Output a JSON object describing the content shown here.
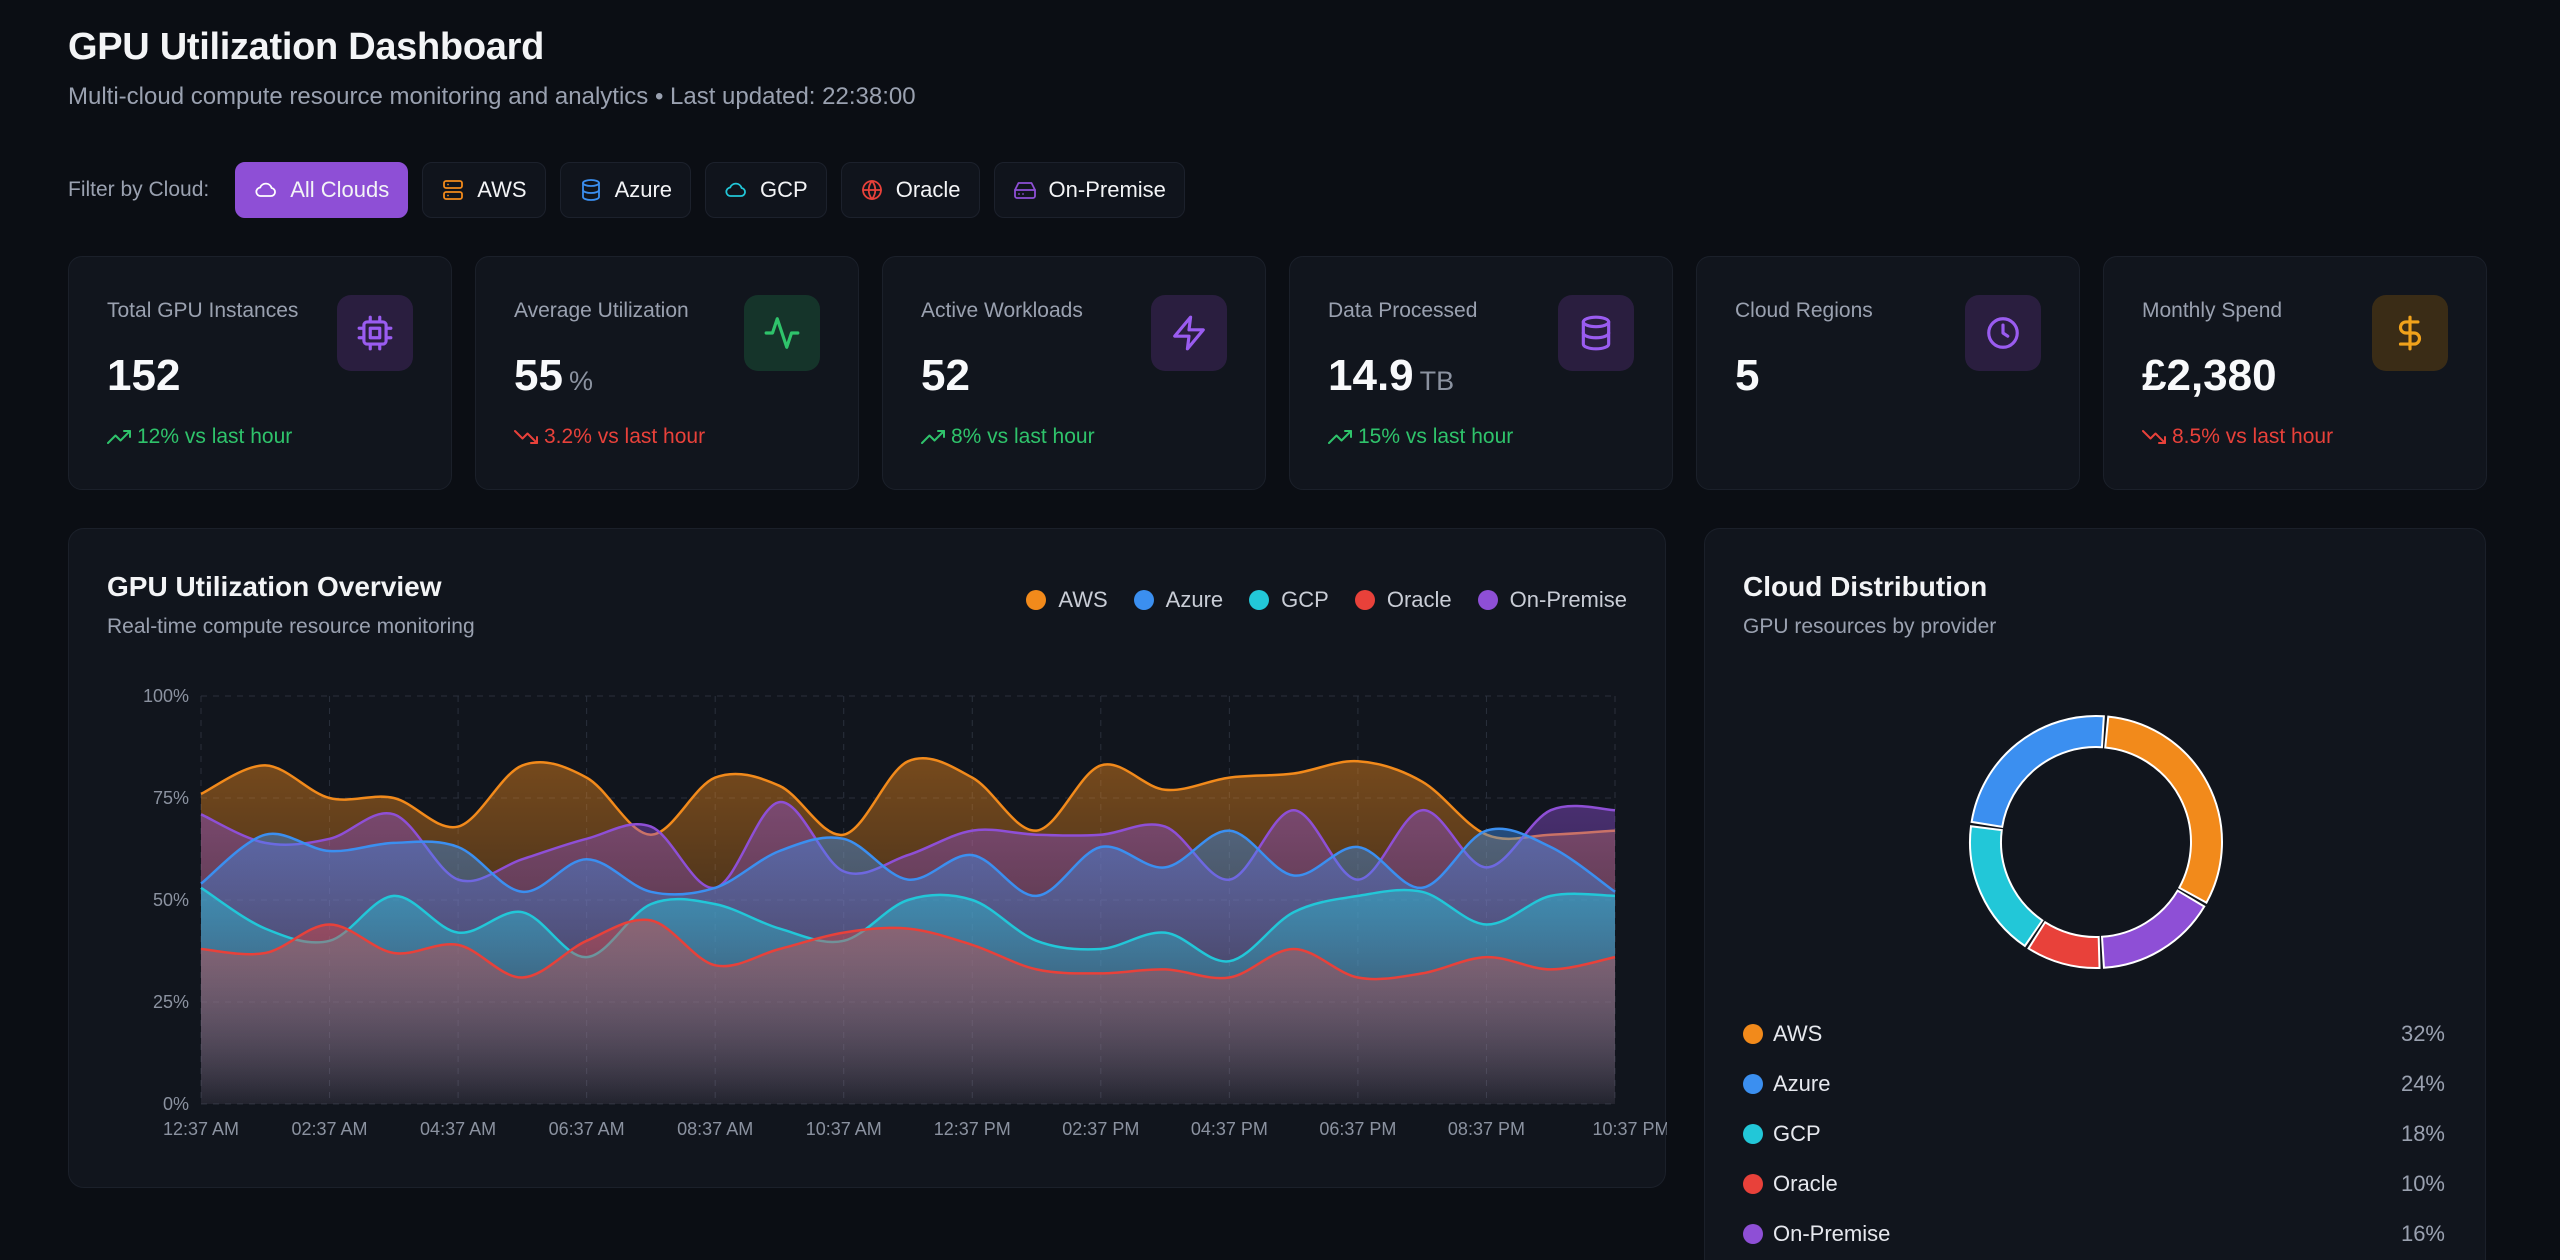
{
  "header": {
    "title": "GPU Utilization Dashboard",
    "subtitle": "Multi-cloud compute resource monitoring and analytics • Last updated: 22:38:00"
  },
  "filters": {
    "label": "Filter by Cloud:",
    "options": [
      {
        "label": "All Clouds",
        "icon": "cloud-icon",
        "color": "#ffffff",
        "active": true
      },
      {
        "label": "AWS",
        "icon": "server-icon",
        "color": "#f28a1b"
      },
      {
        "label": "Azure",
        "icon": "database-icon",
        "color": "#3b8ff0"
      },
      {
        "label": "GCP",
        "icon": "cloud-icon",
        "color": "#22c7d8"
      },
      {
        "label": "Oracle",
        "icon": "globe-icon",
        "color": "#e8413a"
      },
      {
        "label": "On-Premise",
        "icon": "hard-drive-icon",
        "color": "#8e4fd6"
      }
    ]
  },
  "stats": [
    {
      "label": "Total GPU Instances",
      "value": "152",
      "unit": "",
      "change": "12% vs last hour",
      "trend": "up",
      "icon": "cpu-icon",
      "icon_color": "#9a5cf0",
      "icon_bg": "#2a1e3f"
    },
    {
      "label": "Average Utilization",
      "value": "55",
      "unit": "%",
      "change": "3.2% vs last hour",
      "trend": "down",
      "icon": "activity-icon",
      "icon_color": "#2fc36b",
      "icon_bg": "#15342a"
    },
    {
      "label": "Active Workloads",
      "value": "52",
      "unit": "",
      "change": "8% vs last hour",
      "trend": "up",
      "icon": "zap-icon",
      "icon_color": "#9a5cf0",
      "icon_bg": "#2a1e3f"
    },
    {
      "label": "Data Processed",
      "value": "14.9",
      "unit": "TB",
      "change": "15% vs last hour",
      "trend": "up",
      "icon": "database-icon",
      "icon_color": "#9a5cf0",
      "icon_bg": "#2a1e3f"
    },
    {
      "label": "Cloud Regions",
      "value": "5",
      "unit": "",
      "change": "",
      "trend": "",
      "icon": "clock-icon",
      "icon_color": "#9a5cf0",
      "icon_bg": "#2a1e3f"
    },
    {
      "label": "Monthly Spend",
      "value": "£2,380",
      "unit": "",
      "change": "8.5% vs last hour",
      "trend": "down",
      "icon": "dollar-icon",
      "icon_color": "#f0a21b",
      "icon_bg": "#3a2c16"
    }
  ],
  "overview": {
    "title": "GPU Utilization Overview",
    "subtitle": "Real-time compute resource monitoring"
  },
  "distribution": {
    "title": "Cloud Distribution",
    "subtitle": "GPU resources by provider"
  },
  "chart_data": [
    {
      "type": "area",
      "title": "GPU Utilization Overview",
      "x": [
        "12:37 AM",
        "01:37 AM",
        "02:37 AM",
        "03:37 AM",
        "04:37 AM",
        "05:37 AM",
        "06:37 AM",
        "07:37 AM",
        "08:37 AM",
        "09:37 AM",
        "10:37 AM",
        "11:37 AM",
        "12:37 PM",
        "01:37 PM",
        "02:37 PM",
        "03:37 PM",
        "04:37 PM",
        "05:37 PM",
        "06:37 PM",
        "07:37 PM",
        "08:37 PM",
        "09:37 PM",
        "10:37 PM"
      ],
      "x_tick_labels": [
        "12:37 AM",
        "02:37 AM",
        "04:37 AM",
        "06:37 AM",
        "08:37 AM",
        "10:37 AM",
        "12:37 PM",
        "02:37 PM",
        "04:37 PM",
        "06:37 PM",
        "08:37 PM",
        "10:37 PM"
      ],
      "y_ticks": [
        "0%",
        "25%",
        "50%",
        "75%",
        "100%"
      ],
      "ylim": [
        0,
        100
      ],
      "grid": true,
      "legend_position": "top-right",
      "series": [
        {
          "name": "AWS",
          "color": "#f28a1b",
          "values": [
            76,
            83,
            75,
            75,
            68,
            83,
            80,
            66,
            80,
            78,
            66,
            84,
            80,
            67,
            83,
            77,
            80,
            81,
            84,
            79,
            66,
            66,
            67
          ]
        },
        {
          "name": "On-Premise",
          "color": "#8e4fd6",
          "values": [
            71,
            64,
            65,
            71,
            55,
            60,
            65,
            68,
            53,
            74,
            57,
            61,
            67,
            66,
            66,
            68,
            55,
            72,
            55,
            72,
            58,
            72,
            72
          ]
        },
        {
          "name": "Azure",
          "color": "#3b8ff0",
          "values": [
            54,
            66,
            62,
            64,
            63,
            52,
            60,
            52,
            53,
            62,
            65,
            55,
            61,
            51,
            63,
            58,
            67,
            56,
            63,
            53,
            67,
            63,
            52
          ]
        },
        {
          "name": "GCP",
          "color": "#22c7d8",
          "values": [
            53,
            43,
            40,
            51,
            42,
            47,
            36,
            49,
            49,
            43,
            40,
            50,
            50,
            40,
            38,
            42,
            35,
            47,
            51,
            52,
            44,
            51,
            51
          ]
        },
        {
          "name": "Oracle",
          "color": "#e8413a",
          "values": [
            38,
            37,
            44,
            37,
            39,
            31,
            40,
            45,
            34,
            38,
            42,
            43,
            39,
            33,
            32,
            33,
            31,
            38,
            31,
            32,
            36,
            33,
            36
          ]
        }
      ]
    },
    {
      "type": "pie",
      "title": "Cloud Distribution",
      "series": [
        {
          "name": "AWS",
          "value": 32,
          "label": "32%",
          "color": "#f28a1b"
        },
        {
          "name": "On-Premise",
          "value": 16,
          "label": "16%",
          "color": "#8e4fd6"
        },
        {
          "name": "Oracle",
          "value": 10,
          "label": "10%",
          "color": "#e8413a"
        },
        {
          "name": "GCP",
          "value": 18,
          "label": "18%",
          "color": "#22c7d8"
        },
        {
          "name": "Azure",
          "value": 24,
          "label": "24%",
          "color": "#3b8ff0"
        }
      ],
      "legend_order": [
        "AWS",
        "Azure",
        "GCP",
        "Oracle",
        "On-Premise"
      ]
    }
  ]
}
